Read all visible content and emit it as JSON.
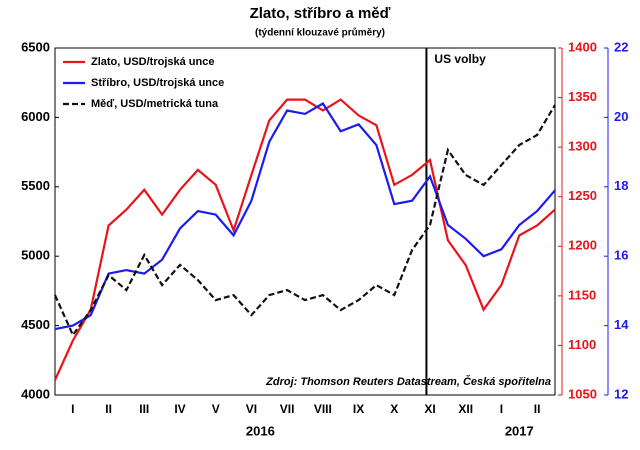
{
  "chart_data": {
    "type": "line",
    "title": "Zlato, stříbro a měď",
    "subtitle": "(týdenní klouzavé průměry)",
    "source": "Zdroj: Thomson Reuters Datastream, Česká spořitelna",
    "categories": [
      null,
      "I",
      null,
      "II",
      null,
      "III",
      null,
      "IV",
      null,
      "V",
      null,
      "VI",
      null,
      "VII",
      null,
      "VIII",
      null,
      "IX",
      null,
      "X",
      null,
      "XI",
      null,
      "XII",
      null,
      "I",
      null,
      "II",
      null
    ],
    "years": [
      "2016",
      "2017"
    ],
    "annotations": [
      {
        "text": "US volby",
        "at": 20.8
      }
    ],
    "series": [
      {
        "name": "Zlato, USD/trojská unce",
        "color": "#e8141a",
        "dash": false,
        "axis": "y2",
        "values": [
          1065,
          1105,
          1136,
          1221,
          1237,
          1257,
          1232,
          1257,
          1277,
          1262,
          1216,
          1272,
          1327,
          1348,
          1348,
          1337,
          1348,
          1332,
          1322,
          1262,
          1272,
          1287,
          1206,
          1181,
          1136,
          1161,
          1211,
          1221,
          1237
        ]
      },
      {
        "name": "Stříbro, USD/trojská unce",
        "color": "#1c1cf0",
        "dash": false,
        "axis": "y3",
        "values": [
          13.9,
          14.0,
          14.3,
          15.5,
          15.6,
          15.5,
          15.9,
          16.8,
          17.3,
          17.2,
          16.6,
          17.6,
          19.3,
          20.2,
          20.1,
          20.4,
          19.6,
          19.8,
          19.2,
          17.5,
          17.6,
          18.3,
          16.9,
          16.5,
          16.0,
          16.2,
          16.9,
          17.3,
          17.9
        ]
      },
      {
        "name": "Měď, USD/metrická tuna",
        "color": "#111111",
        "dash": true,
        "axis": "y",
        "values": [
          4720,
          4432,
          4612,
          4864,
          4756,
          5009,
          4792,
          4937,
          4828,
          4684,
          4720,
          4576,
          4720,
          4756,
          4684,
          4720,
          4612,
          4684,
          4792,
          4720,
          5045,
          5225,
          5765,
          5585,
          5513,
          5657,
          5801,
          5873,
          6089
        ]
      }
    ],
    "ylim": [
      4000,
      6500
    ],
    "yticks": [
      4000,
      4500,
      5000,
      5500,
      6000,
      6500
    ],
    "y2lim": [
      1050,
      1400
    ],
    "y2ticks": [
      1050,
      1100,
      1150,
      1200,
      1250,
      1300,
      1350,
      1400
    ],
    "y3lim": [
      12,
      22
    ],
    "y3ticks": [
      12,
      14,
      16,
      18,
      20,
      22
    ],
    "grid": false,
    "legend": "upper left"
  }
}
